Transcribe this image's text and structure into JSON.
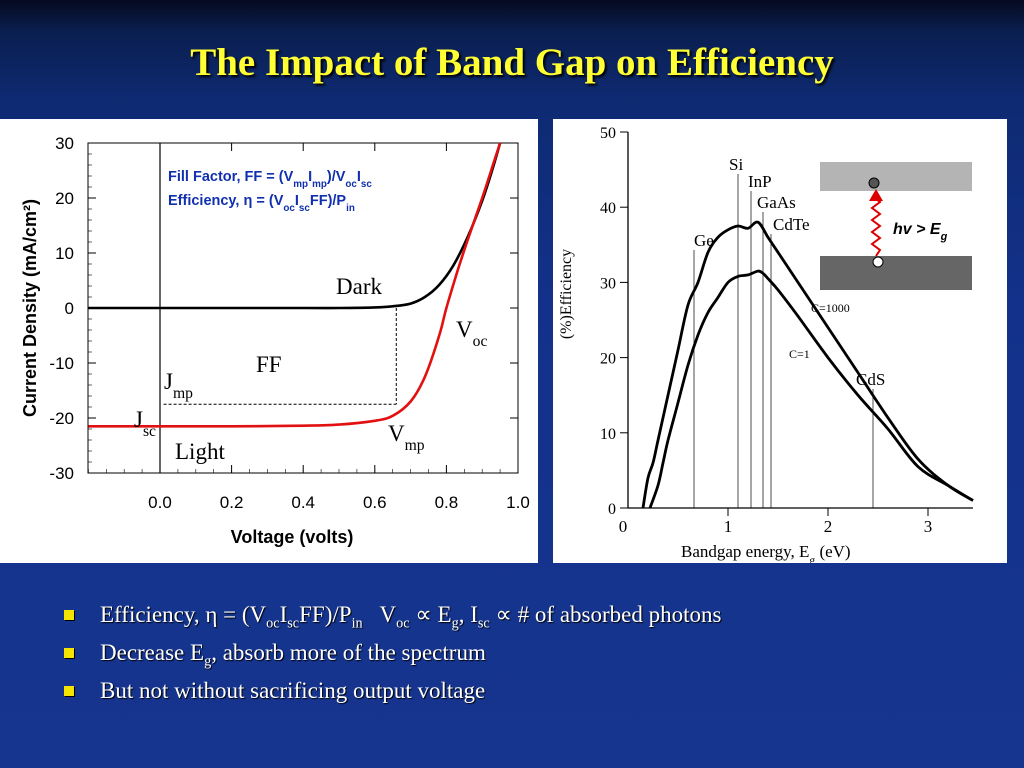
{
  "title": "The Impact of Band Gap on Efficiency",
  "colors": {
    "title": "#ffff33",
    "background": "#13318a",
    "bullet": "#f4e400",
    "light_curve": "#e21010",
    "dark_curve": "#000000",
    "annotation_blue": "#1030b0"
  },
  "chart_data": [
    {
      "type": "line",
      "xlabel": "Voltage (volts)",
      "ylabel": "Current Density (mA/cm²)",
      "xticks": [
        "0.0",
        "0.2",
        "0.4",
        "0.6",
        "0.8",
        "1.0"
      ],
      "yticks": [
        "30",
        "20",
        "10",
        "0",
        "-10",
        "-20",
        "-30"
      ],
      "xlim": [
        -0.2,
        1.0
      ],
      "ylim": [
        -30,
        30
      ],
      "series": [
        {
          "name": "Dark",
          "color": "#000000",
          "x": [
            -0.2,
            0.0,
            0.2,
            0.4,
            0.5,
            0.6,
            0.65,
            0.7,
            0.74,
            0.78,
            0.82,
            0.86,
            0.9,
            0.93,
            0.95
          ],
          "y": [
            0,
            0,
            0,
            0,
            0,
            0.1,
            0.3,
            0.8,
            2.0,
            4.2,
            7.8,
            13.0,
            19.5,
            25.5,
            30
          ]
        },
        {
          "name": "Light",
          "color": "#e21010",
          "x": [
            -0.2,
            0.0,
            0.2,
            0.4,
            0.5,
            0.6,
            0.65,
            0.7,
            0.74,
            0.78,
            0.8,
            0.83,
            0.86,
            0.9,
            0.93,
            0.95
          ],
          "y": [
            -21.5,
            -21.5,
            -21.5,
            -21.4,
            -21.2,
            -20.5,
            -19.6,
            -17.0,
            -12.5,
            -5.0,
            0,
            6.5,
            12.5,
            20.0,
            26.0,
            30
          ]
        }
      ],
      "mpp": {
        "x": 0.66,
        "y": -17.5
      },
      "annotations": {
        "dark": "Dark",
        "light": "Light",
        "ff": "FF",
        "voc": "V",
        "voc_sub": "oc",
        "vmp": "V",
        "vmp_sub": "mp",
        "jmp": "J",
        "jmp_sub": "mp",
        "jsc": "J",
        "jsc_sub": "sc",
        "ff_formula": {
          "a": "Fill Factor, FF = (V",
          "a_sub1": "mp",
          "a_mid1": "I",
          "a_sub2": "mp",
          "a_mid2": ")/V",
          "a_sub3": "oc",
          "a_mid3": "I",
          "a_sub4": "sc"
        },
        "eff_formula": {
          "a": "Efficiency, η = (V",
          "sub1": "oc",
          "mid1": "I",
          "sub2": "sc",
          "mid2": "FF)/P",
          "sub3": "in"
        }
      }
    },
    {
      "type": "line",
      "xlabel": "Bandgap energy, E",
      "xlabel_sub": "g",
      "xlabel_tail": " (eV)",
      "ylabel": "(%)Efficiency",
      "xticks": [
        "0",
        "1",
        "2",
        "3"
      ],
      "yticks": [
        "50",
        "40",
        "30",
        "20",
        "10",
        "0"
      ],
      "xlim": [
        0,
        3.5
      ],
      "ylim": [
        0,
        50
      ],
      "series": [
        {
          "name": "C=1000",
          "color": "#000000",
          "x": [
            0.15,
            0.2,
            0.25,
            0.3,
            0.4,
            0.5,
            0.6,
            0.7,
            0.8,
            0.9,
            1.0,
            1.1,
            1.2,
            1.3,
            1.4,
            1.5,
            1.7,
            2.0,
            2.3,
            2.6,
            2.9,
            3.2,
            3.45
          ],
          "y": [
            0,
            4,
            6,
            9,
            15,
            21,
            27,
            30,
            34,
            36,
            37,
            37.5,
            37.2,
            38,
            36,
            34,
            30,
            24,
            18,
            12,
            6.5,
            3,
            1
          ]
        },
        {
          "name": "C=1",
          "color": "#000000",
          "x": [
            0.22,
            0.3,
            0.35,
            0.4,
            0.5,
            0.6,
            0.7,
            0.8,
            0.9,
            1.0,
            1.1,
            1.2,
            1.3,
            1.35,
            1.4,
            1.5,
            1.7,
            2.0,
            2.3,
            2.6,
            2.9,
            3.2,
            3.45
          ],
          "y": [
            0,
            3,
            6,
            9,
            14,
            19,
            23,
            26,
            28,
            30,
            30.8,
            31,
            31.5,
            31.2,
            30.5,
            29,
            25.5,
            20,
            15,
            10.5,
            5.5,
            3,
            1
          ]
        }
      ],
      "series_labels": [
        "C=1000",
        "C=1"
      ],
      "materials": [
        {
          "label": "Ge",
          "x": 0.66
        },
        {
          "label": "Si",
          "x": 1.1
        },
        {
          "label": "InP",
          "x": 1.23
        },
        {
          "label": "GaAs",
          "x": 1.35
        },
        {
          "label": "CdTe",
          "x": 1.43
        },
        {
          "label": "CdS",
          "x": 2.45
        }
      ],
      "inset": {
        "label": "hv > E",
        "label_sub": "g"
      }
    }
  ],
  "bullets": [
    {
      "parts": [
        {
          "t": "Efficiency, η = (V"
        },
        {
          "t": "oc",
          "sub": true
        },
        {
          "t": "I"
        },
        {
          "t": "sc",
          "sub": true
        },
        {
          "t": "FF)/P"
        },
        {
          "t": "in",
          "sub": true
        },
        {
          "t": "   V"
        },
        {
          "t": "oc",
          "sub": true
        },
        {
          "t": " ∝ E"
        },
        {
          "t": "g",
          "sub": true
        },
        {
          "t": ", I"
        },
        {
          "t": "sc",
          "sub": true
        },
        {
          "t": " ∝ # of absorbed photons"
        }
      ]
    },
    {
      "parts": [
        {
          "t": "Decrease E"
        },
        {
          "t": "g",
          "sub": true
        },
        {
          "t": ", absorb more of the spectrum"
        }
      ]
    },
    {
      "parts": [
        {
          "t": "But not without sacrificing output voltage"
        }
      ]
    }
  ]
}
